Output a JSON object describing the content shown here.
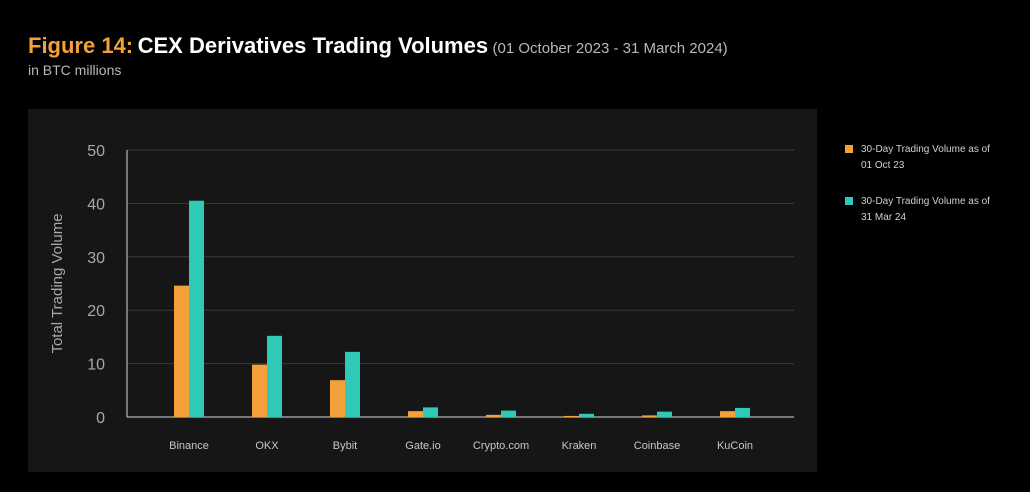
{
  "header": {
    "figure_label": "Figure 14:",
    "title": "CEX Derivatives Trading Volumes",
    "date_range": "(01 October 2023 - 31 March 2024)",
    "unit_subtitle": "in BTC millions"
  },
  "colors": {
    "background": "#000000",
    "panel": "#161616",
    "oct_series": "#f5a13a",
    "mar_series": "#2ec9b7",
    "grid": "#3a3a3a",
    "axis_text": "#a8a8a8"
  },
  "legend": [
    {
      "label": "30-Day Trading Volume as of 01 Oct 23",
      "color": "#f5a13a"
    },
    {
      "label": "30-Day Trading Volume as of 31 Mar 24",
      "color": "#2ec9b7"
    }
  ],
  "chart_data": {
    "type": "bar",
    "title": "CEX Derivatives Trading Volumes",
    "subtitle": "(01 October 2023 - 31 March 2024)",
    "xlabel": "",
    "ylabel": "Total Trading Volume",
    "ylim": [
      0,
      50
    ],
    "yticks": [
      0,
      10,
      20,
      30,
      40,
      50
    ],
    "grid": true,
    "legend_position": "right",
    "categories": [
      "Binance",
      "OKX",
      "Bybit",
      "Gate.io",
      "Crypto.com",
      "Kraken",
      "Coinbase",
      "KuCoin"
    ],
    "series": [
      {
        "name": "30-Day Trading Volume as of 01 Oct 23",
        "color": "#f5a13a",
        "values": [
          24.6,
          9.8,
          6.9,
          1.1,
          0.4,
          0.2,
          0.3,
          1.1
        ]
      },
      {
        "name": "30-Day Trading Volume as of 31 Mar 24",
        "color": "#2ec9b7",
        "values": [
          40.5,
          15.2,
          12.2,
          1.8,
          1.2,
          0.6,
          1.0,
          1.7
        ]
      }
    ]
  }
}
